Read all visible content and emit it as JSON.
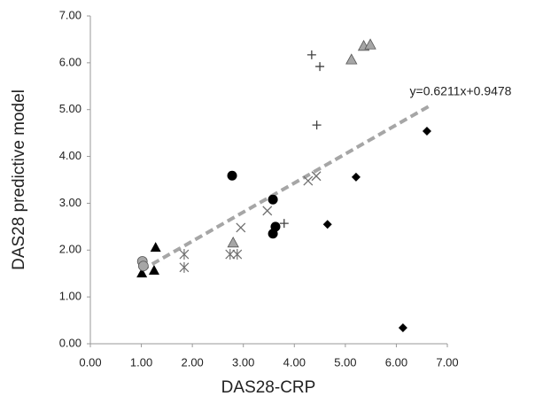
{
  "chart_data": {
    "type": "scatter",
    "x_label": "DAS28-CRP",
    "y_label": "DAS28 predictive model",
    "xlim": [
      0,
      7
    ],
    "ylim": [
      0,
      7
    ],
    "xticks": [
      {
        "value": 0,
        "label": "0.00"
      },
      {
        "value": 1,
        "label": "1.00"
      },
      {
        "value": 2,
        "label": "2.00"
      },
      {
        "value": 3,
        "label": "3.00"
      },
      {
        "value": 4,
        "label": "4.00"
      },
      {
        "value": 5,
        "label": "5.00"
      },
      {
        "value": 6,
        "label": "6.00"
      },
      {
        "value": 7,
        "label": "7.00"
      }
    ],
    "yticks": [
      {
        "value": 0,
        "label": "0.00"
      },
      {
        "value": 1,
        "label": "1.00"
      },
      {
        "value": 2,
        "label": "2.00"
      },
      {
        "value": 3,
        "label": "3.00"
      },
      {
        "value": 4,
        "label": "4.00"
      },
      {
        "value": 5,
        "label": "5.00"
      },
      {
        "value": 6,
        "label": "6.00"
      },
      {
        "value": 7,
        "label": "7.00"
      }
    ],
    "series": [
      {
        "marker": "triangle",
        "color": "#000000",
        "x": [
          1.01,
          1.25,
          1.28
        ],
        "values": [
          1.51,
          1.57,
          2.06
        ]
      },
      {
        "marker": "triangle",
        "color": "#a6a6a6",
        "x": [
          2.8,
          5.12,
          5.36,
          5.49
        ],
        "values": [
          2.16,
          6.07,
          6.36,
          6.39
        ]
      },
      {
        "marker": "circle",
        "color": "#000000",
        "x": [
          2.78,
          3.58,
          3.63,
          3.58
        ],
        "values": [
          3.59,
          3.08,
          2.5,
          2.35
        ]
      },
      {
        "marker": "circle",
        "color": "#a6a6a6",
        "x": [
          1.02,
          1.04
        ],
        "values": [
          1.76,
          1.66
        ]
      },
      {
        "marker": "diamond",
        "color": "#000000",
        "x": [
          4.65,
          5.21,
          6.13,
          6.6
        ],
        "values": [
          2.55,
          3.56,
          0.34,
          4.54
        ]
      },
      {
        "marker": "plus",
        "color": "#404040",
        "x": [
          4.34,
          4.5,
          4.44,
          3.8
        ],
        "values": [
          6.17,
          5.92,
          4.67,
          2.57
        ]
      },
      {
        "marker": "cross",
        "color": "#707070",
        "x": [
          2.95,
          3.47,
          4.27,
          4.43
        ],
        "values": [
          2.48,
          2.84,
          3.48,
          3.58
        ]
      },
      {
        "marker": "star",
        "color": "#707070",
        "x": [
          1.84,
          1.84,
          2.74,
          2.88
        ],
        "values": [
          1.63,
          1.91,
          1.91,
          1.91
        ]
      }
    ],
    "trendline": {
      "label": "y=0.6211x+0.9478",
      "slope": 0.6211,
      "intercept": 0.9478,
      "x": [
        1,
        6.65
      ],
      "color": "#a6a6a6"
    }
  }
}
